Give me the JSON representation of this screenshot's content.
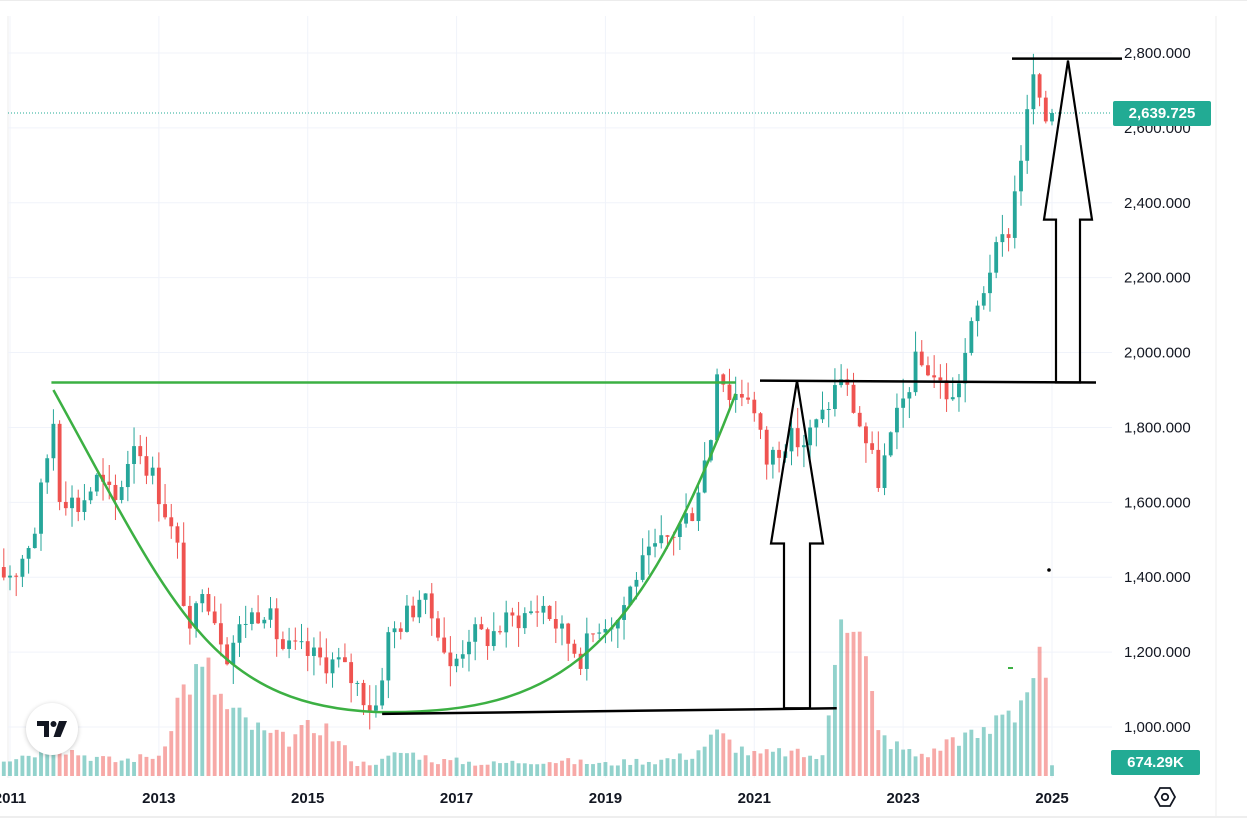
{
  "chart_data": {
    "type": "candlestick",
    "title": "",
    "y_axis_ticks": [
      "2,800.000",
      "2,600.000",
      "2,400.000",
      "2,200.000",
      "2,000.000",
      "1,800.000",
      "1,600.000",
      "1,400.000",
      "1,200.000",
      "1,000.000"
    ],
    "y_tick_values": [
      2800,
      2600,
      2400,
      2200,
      2000,
      1800,
      1600,
      1400,
      1200,
      1000
    ],
    "x_axis_ticks": [
      "2011",
      "2013",
      "2015",
      "2017",
      "2019",
      "2021",
      "2023",
      "2025"
    ],
    "x_tick_years": [
      2011,
      2013,
      2015,
      2017,
      2019,
      2021,
      2023,
      2025
    ],
    "ylim": [
      900,
      2880
    ],
    "xlim": [
      "2010-11",
      "2026-01"
    ],
    "grid": true,
    "last_price": 2639.725,
    "last_price_label": "2,639.725",
    "last_volume_label": "674.29K",
    "up_color": "#26a69a",
    "down_color": "#ef5350",
    "annotation_color_green": "#3cb043",
    "annotation_color_black": "#000000",
    "close_path": [
      [
        "2010-11",
        1400
      ],
      [
        "2011-02",
        1420
      ],
      [
        "2011-05",
        1530
      ],
      [
        "2011-08",
        1820
      ],
      [
        "2011-09",
        1630
      ],
      [
        "2011-12",
        1590
      ],
      [
        "2012-03",
        1660
      ],
      [
        "2012-06",
        1600
      ],
      [
        "2012-09",
        1770
      ],
      [
        "2012-12",
        1670
      ],
      [
        "2013-02",
        1580
      ],
      [
        "2013-04",
        1470
      ],
      [
        "2013-06",
        1230
      ],
      [
        "2013-08",
        1390
      ],
      [
        "2013-12",
        1200
      ],
      [
        "2014-03",
        1290
      ],
      [
        "2014-06",
        1320
      ],
      [
        "2014-09",
        1210
      ],
      [
        "2014-12",
        1200
      ],
      [
        "2015-03",
        1180
      ],
      [
        "2015-06",
        1170
      ],
      [
        "2015-09",
        1110
      ],
      [
        "2015-11",
        1060
      ],
      [
        "2015-12",
        1060
      ],
      [
        "2016-02",
        1240
      ],
      [
        "2016-06",
        1320
      ],
      [
        "2016-07",
        1350
      ],
      [
        "2016-10",
        1270
      ],
      [
        "2016-12",
        1150
      ],
      [
        "2017-03",
        1250
      ],
      [
        "2017-06",
        1240
      ],
      [
        "2017-09",
        1280
      ],
      [
        "2017-12",
        1300
      ],
      [
        "2018-03",
        1325
      ],
      [
        "2018-06",
        1250
      ],
      [
        "2018-09",
        1190
      ],
      [
        "2018-12",
        1280
      ],
      [
        "2019-03",
        1290
      ],
      [
        "2019-06",
        1410
      ],
      [
        "2019-09",
        1470
      ],
      [
        "2019-12",
        1520
      ],
      [
        "2020-03",
        1580
      ],
      [
        "2020-06",
        1780
      ],
      [
        "2020-07",
        1970
      ],
      [
        "2020-09",
        1890
      ],
      [
        "2020-12",
        1895
      ],
      [
        "2021-03",
        1710
      ],
      [
        "2021-06",
        1770
      ],
      [
        "2021-09",
        1760
      ],
      [
        "2021-12",
        1830
      ],
      [
        "2022-03",
        1940
      ],
      [
        "2022-06",
        1810
      ],
      [
        "2022-09",
        1660
      ],
      [
        "2022-12",
        1820
      ],
      [
        "2023-03",
        1970
      ],
      [
        "2023-05",
        1960
      ],
      [
        "2023-09",
        1870
      ],
      [
        "2023-12",
        2060
      ],
      [
        "2024-03",
        2230
      ],
      [
        "2024-06",
        2330
      ],
      [
        "2024-09",
        2630
      ],
      [
        "2024-10",
        2740
      ],
      [
        "2024-11",
        2650
      ],
      [
        "2024-12",
        2625
      ],
      [
        "2025-01",
        2640
      ]
    ],
    "volume_bars": [
      [
        "2011-01",
        0.06
      ],
      [
        "2011-05",
        0.08
      ],
      [
        "2011-09",
        0.1
      ],
      [
        "2012-01",
        0.07
      ],
      [
        "2012-06",
        0.05
      ],
      [
        "2013-01",
        0.07
      ],
      [
        "2013-04",
        0.25
      ],
      [
        "2013-06",
        0.33
      ],
      [
        "2013-09",
        0.34
      ],
      [
        "2013-12",
        0.22
      ],
      [
        "2014-03",
        0.18
      ],
      [
        "2014-06",
        0.14
      ],
      [
        "2014-09",
        0.12
      ],
      [
        "2014-12",
        0.14
      ],
      [
        "2015-03",
        0.18
      ],
      [
        "2015-06",
        0.11
      ],
      [
        "2015-09",
        0.04
      ],
      [
        "2016-01",
        0.05
      ],
      [
        "2016-04",
        0.08
      ],
      [
        "2016-07",
        0.07
      ],
      [
        "2016-10",
        0.05
      ],
      [
        "2017-01",
        0.05
      ],
      [
        "2017-06",
        0.04
      ],
      [
        "2018-01",
        0.05
      ],
      [
        "2018-06",
        0.05
      ],
      [
        "2019-01",
        0.04
      ],
      [
        "2019-06",
        0.05
      ],
      [
        "2019-09",
        0.05
      ],
      [
        "2020-03",
        0.07
      ],
      [
        "2020-07",
        0.14
      ],
      [
        "2020-10",
        0.1
      ],
      [
        "2021-01",
        0.07
      ],
      [
        "2021-06",
        0.08
      ],
      [
        "2021-12",
        0.06
      ],
      [
        "2022-01",
        0.2
      ],
      [
        "2022-03",
        0.65
      ],
      [
        "2022-05",
        0.55
      ],
      [
        "2022-07",
        0.37
      ],
      [
        "2022-09",
        0.14
      ],
      [
        "2022-12",
        0.1
      ],
      [
        "2023-03",
        0.07
      ],
      [
        "2023-06",
        0.08
      ],
      [
        "2023-09",
        0.13
      ],
      [
        "2023-12",
        0.13
      ],
      [
        "2024-03",
        0.15
      ],
      [
        "2024-05",
        0.24
      ],
      [
        "2024-07",
        0.22
      ],
      [
        "2024-09",
        0.3
      ],
      [
        "2024-10",
        0.34
      ],
      [
        "2024-11",
        0.36
      ],
      [
        "2024-12",
        0.3
      ],
      [
        "2025-01",
        0.03
      ]
    ]
  },
  "icons": {
    "logo": "tradingview-logo-icon",
    "settings": "settings-hexagon-icon"
  }
}
